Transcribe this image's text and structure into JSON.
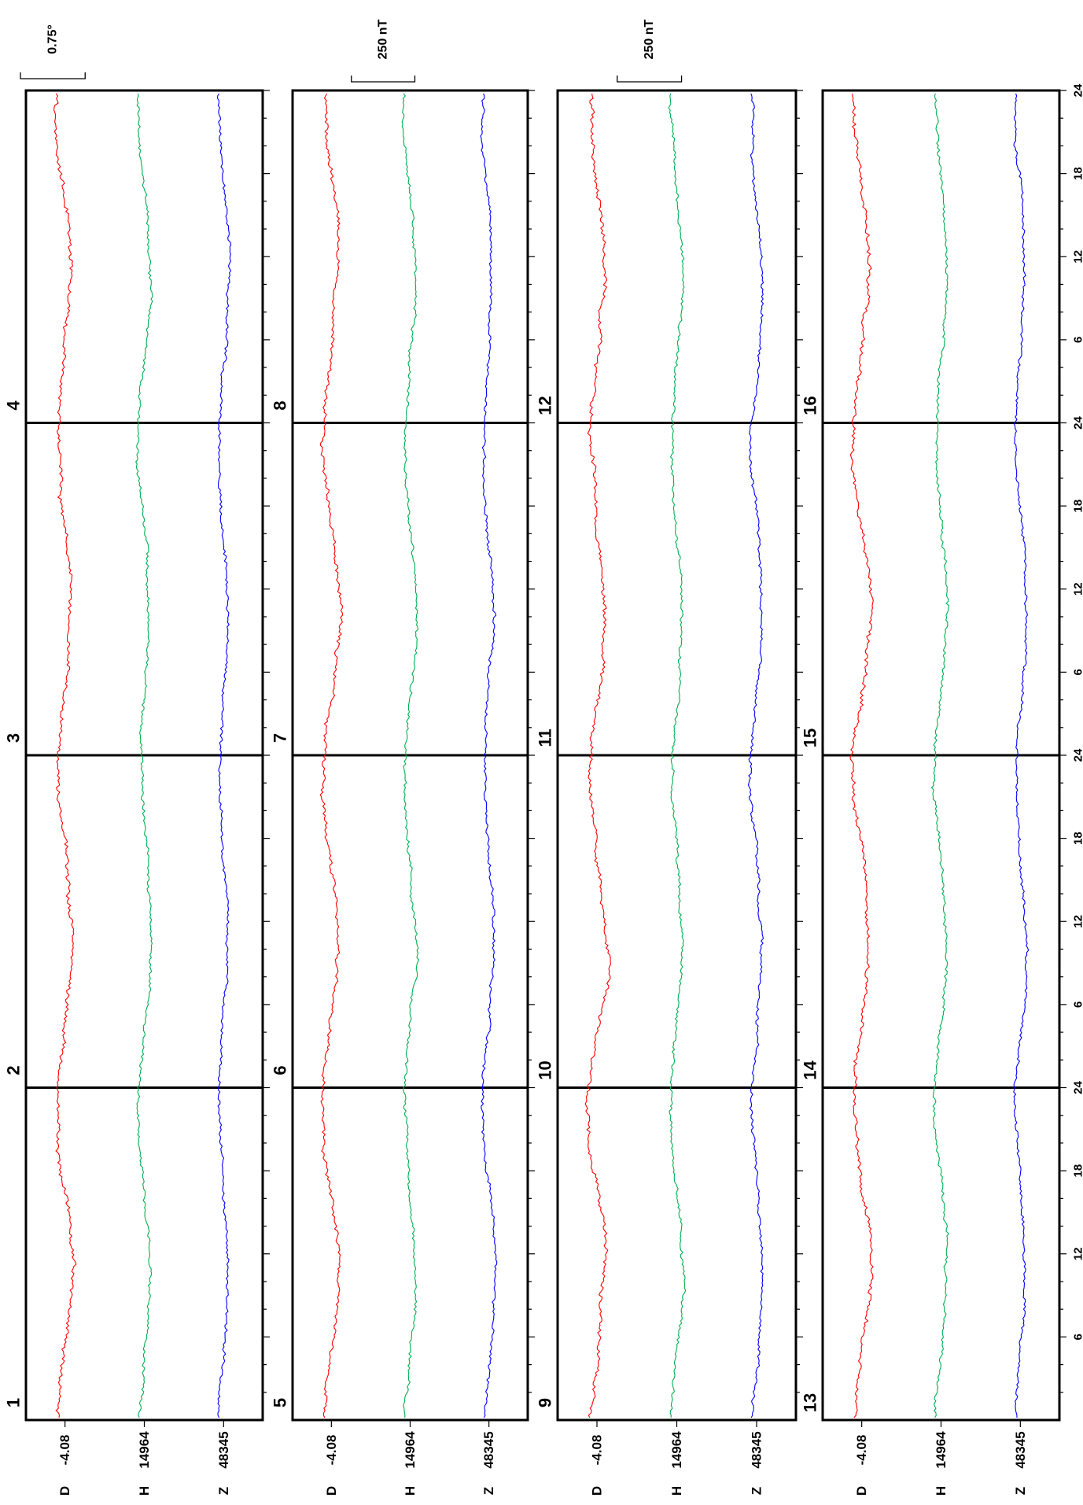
{
  "chart_data": {
    "type": "line",
    "orientation": "rotated-90-ccw",
    "rows": [
      {
        "days": [
          "1",
          "2",
          "3",
          "4"
        ],
        "scale_bar_label": "0.75°"
      },
      {
        "days": [
          "5",
          "6",
          "7",
          "8"
        ],
        "scale_bar_label": "250 nT"
      },
      {
        "days": [
          "9",
          "10",
          "11",
          "12"
        ],
        "scale_bar_label": "250 nT"
      },
      {
        "days": [
          "13",
          "14",
          "15",
          "16"
        ],
        "scale_bar_label": ""
      }
    ],
    "series": [
      {
        "name": "D",
        "baseline_label": "-4.08",
        "color": "#ff0000"
      },
      {
        "name": "H",
        "baseline_label": "14964",
        "color": "#00b050"
      },
      {
        "name": "Z",
        "baseline_label": "48345",
        "color": "#0000ff"
      }
    ],
    "hour_ticks": [
      "6",
      "12",
      "18",
      "24"
    ],
    "x_range_hours_per_day": [
      0,
      24
    ],
    "days_per_row": 4
  }
}
